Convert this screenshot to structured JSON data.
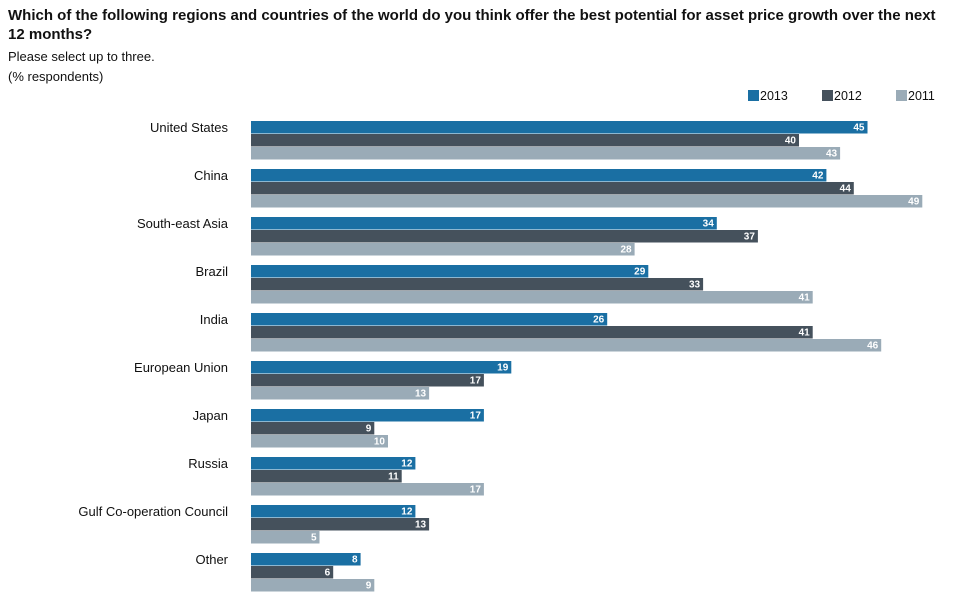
{
  "chart_data": {
    "type": "bar",
    "orientation": "horizontal",
    "title": "Which of the following regions and countries of the world do you think offer the best potential for asset price growth over the next 12 months?",
    "subtitle": "Please select up to three.",
    "units_note": "(% respondents)",
    "categories": [
      "United States",
      "China",
      "South-east Asia",
      "Brazil",
      "India",
      "European Union",
      "Japan",
      "Russia",
      "Gulf Co-operation Council",
      "Other"
    ],
    "series": [
      {
        "name": "2013",
        "color": "#1a6fa3",
        "values": [
          45,
          42,
          34,
          29,
          26,
          19,
          17,
          12,
          12,
          8
        ]
      },
      {
        "name": "2012",
        "color": "#45515c",
        "values": [
          40,
          44,
          37,
          33,
          41,
          17,
          9,
          11,
          13,
          6
        ]
      },
      {
        "name": "2011",
        "color": "#9aabb7",
        "values": [
          43,
          49,
          28,
          41,
          46,
          13,
          10,
          17,
          5,
          9
        ]
      }
    ],
    "xlim": [
      0,
      49
    ],
    "legend_position": "top-right",
    "grid": false,
    "data_labels": true
  }
}
